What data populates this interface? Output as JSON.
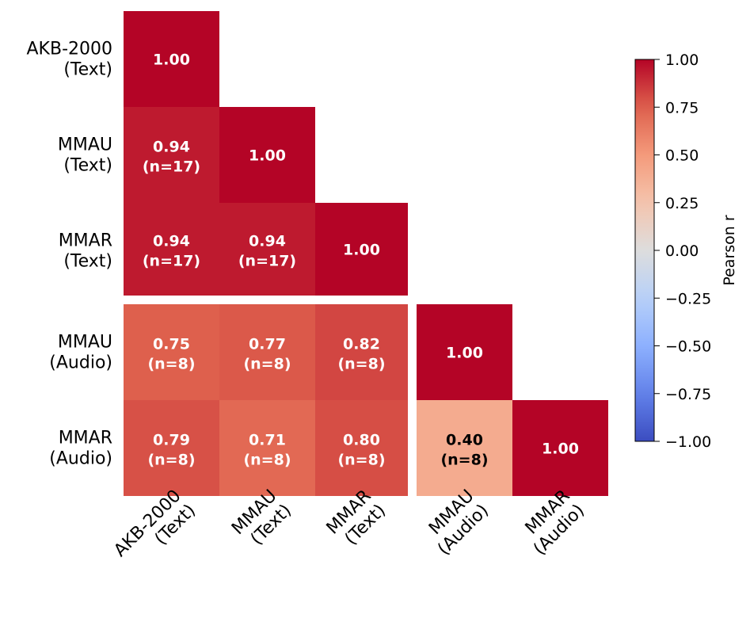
{
  "chart_data": {
    "type": "heatmap",
    "title": "",
    "rows": [
      "AKB-2000\n(Text)",
      "MMAU\n(Text)",
      "MMAR\n(Text)",
      "MMAU\n(Audio)",
      "MMAR\n(Audio)"
    ],
    "columns": [
      "AKB-2000\n(Text)",
      "MMAU\n(Text)",
      "MMAR\n(Text)",
      "MMAU\n(Audio)",
      "MMAR\n(Audio)"
    ],
    "cells": [
      [
        {
          "r": 1.0,
          "n": null
        },
        null,
        null,
        null,
        null
      ],
      [
        {
          "r": 0.94,
          "n": 17
        },
        {
          "r": 1.0,
          "n": null
        },
        null,
        null,
        null
      ],
      [
        {
          "r": 0.94,
          "n": 17
        },
        {
          "r": 0.94,
          "n": 17
        },
        {
          "r": 1.0,
          "n": null
        },
        null,
        null
      ],
      [
        {
          "r": 0.75,
          "n": 8
        },
        {
          "r": 0.77,
          "n": 8
        },
        {
          "r": 0.82,
          "n": 8
        },
        {
          "r": 1.0,
          "n": null
        },
        null
      ],
      [
        {
          "r": 0.79,
          "n": 8
        },
        {
          "r": 0.71,
          "n": 8
        },
        {
          "r": 0.8,
          "n": 8
        },
        {
          "r": 0.4,
          "n": 8
        },
        {
          "r": 1.0,
          "n": null
        }
      ]
    ],
    "colormap": "coolwarm",
    "colorbar": {
      "label": "Pearson r",
      "range": [
        -1.0,
        1.0
      ],
      "ticks": [
        "1.00",
        "0.75",
        "0.50",
        "0.25",
        "0.00",
        "−0.25",
        "−0.50",
        "−0.75",
        "−1.00"
      ],
      "tick_values": [
        1.0,
        0.75,
        0.5,
        0.25,
        0.0,
        -0.25,
        -0.5,
        -0.75,
        -1.0
      ]
    },
    "lower_triangle_only": true,
    "group_separator_after_index": 2
  }
}
